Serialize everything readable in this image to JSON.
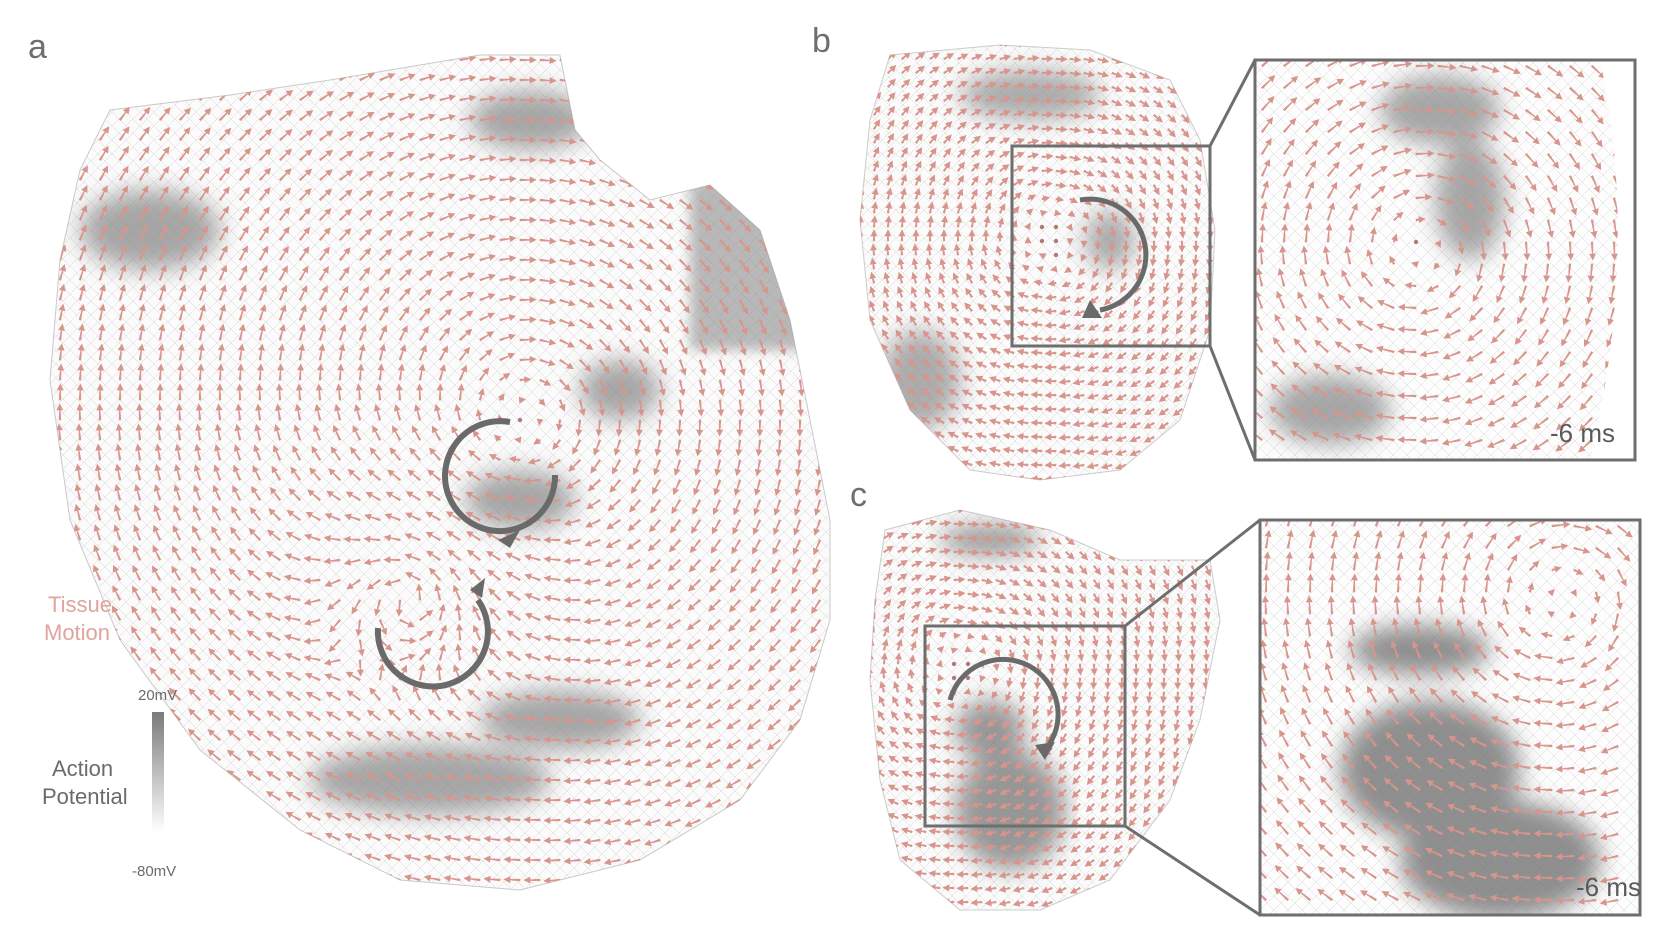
{
  "panels": {
    "a": {
      "letter": "a"
    },
    "b": {
      "letter": "b",
      "time": "-6 ms"
    },
    "c": {
      "letter": "c",
      "time": "-6 ms"
    }
  },
  "legend": {
    "motion_line1": "Tissue",
    "motion_line2": "Motion",
    "ap_line1": "Action",
    "ap_line2": "Potential",
    "max": "20mV",
    "min": "-80mV"
  },
  "colors": {
    "arrow": "#d8958c",
    "potential_dark": "#777777",
    "frame": "#6e6e6e",
    "rotation_arrow": "#6a6a6a"
  }
}
